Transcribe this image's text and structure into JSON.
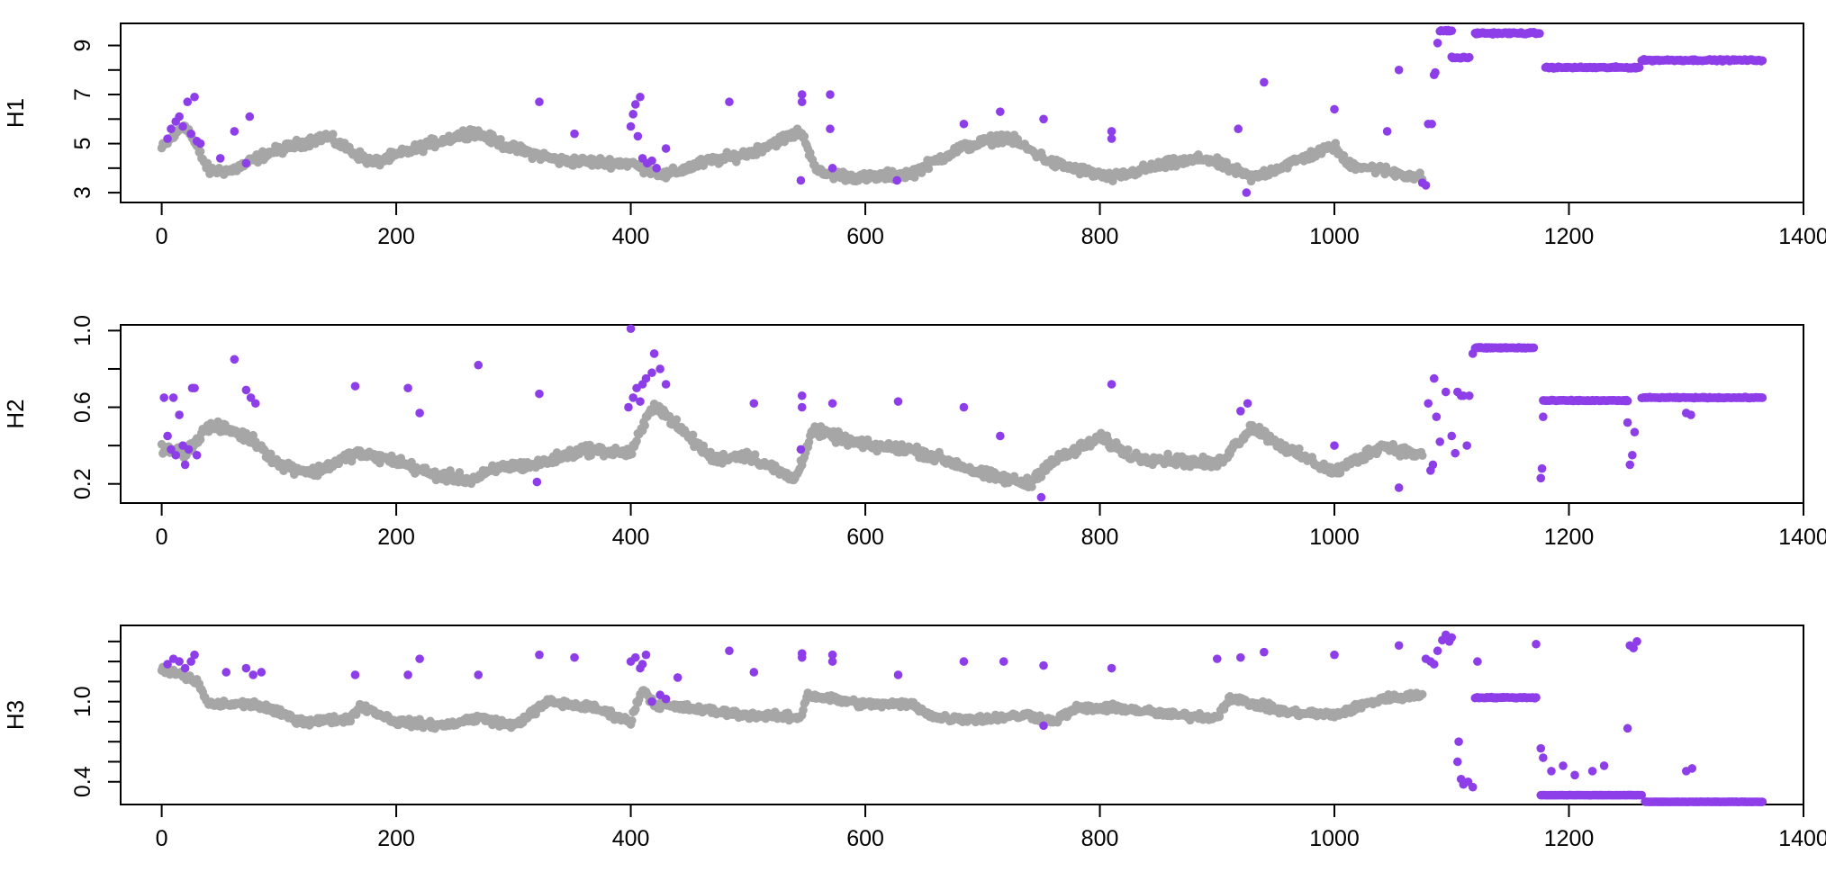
{
  "figure": {
    "title": "",
    "background": "#ffffff"
  },
  "colors": {
    "normal": "#a6a6a6",
    "highlight": "#8e3ee8",
    "axis": "#000000"
  },
  "chart_data": [
    {
      "type": "scatter",
      "name": "H1",
      "ylabel": "H1",
      "xlabel": "",
      "xlim": [
        -35,
        1400
      ],
      "ylim": [
        2.6,
        9.9
      ],
      "xticks": [
        0,
        200,
        400,
        600,
        800,
        1000,
        1200,
        1400
      ],
      "xtick_labels": [
        "0",
        "200",
        "400",
        "600",
        "800",
        "1000",
        "1200",
        "1400"
      ],
      "yticks": [
        3,
        4,
        5,
        6,
        7,
        8,
        9
      ],
      "ytick_labels": [
        "3",
        "5",
        "7",
        "9"
      ],
      "ytick_label_values": [
        3,
        5,
        7,
        9
      ],
      "baseline": [
        [
          0,
          4.8
        ],
        [
          20,
          5.8
        ],
        [
          40,
          3.9
        ],
        [
          60,
          3.9
        ],
        [
          90,
          4.6
        ],
        [
          140,
          5.3
        ],
        [
          180,
          4.2
        ],
        [
          230,
          5.0
        ],
        [
          265,
          5.5
        ],
        [
          300,
          4.8
        ],
        [
          340,
          4.3
        ],
        [
          400,
          4.2
        ],
        [
          430,
          3.7
        ],
        [
          460,
          4.2
        ],
        [
          500,
          4.6
        ],
        [
          545,
          5.5
        ],
        [
          560,
          3.8
        ],
        [
          600,
          3.6
        ],
        [
          640,
          3.8
        ],
        [
          680,
          4.8
        ],
        [
          720,
          5.3
        ],
        [
          760,
          4.2
        ],
        [
          810,
          3.6
        ],
        [
          850,
          4.1
        ],
        [
          890,
          4.4
        ],
        [
          930,
          3.6
        ],
        [
          1000,
          4.9
        ],
        [
          1010,
          4.2
        ],
        [
          1075,
          3.6
        ]
      ],
      "baseline_jitter": 0.28,
      "highlight_segments": [
        {
          "x": [
            1090,
            1100
          ],
          "y": 9.6
        },
        {
          "x": [
            1100,
            1115
          ],
          "y": 8.5
        },
        {
          "x": [
            1120,
            1175
          ],
          "y": 9.5
        },
        {
          "x": [
            1180,
            1260
          ],
          "y": 8.1
        },
        {
          "x": [
            1262,
            1365
          ],
          "y": 8.4
        }
      ],
      "highlight_extra": [
        [
          5,
          5.2
        ],
        [
          8,
          5.6
        ],
        [
          12,
          5.9
        ],
        [
          15,
          6.1
        ],
        [
          18,
          5.7
        ],
        [
          22,
          6.7
        ],
        [
          25,
          5.4
        ],
        [
          28,
          6.9
        ],
        [
          30,
          5.1
        ],
        [
          33,
          5.0
        ],
        [
          50,
          4.4
        ],
        [
          62,
          5.5
        ],
        [
          72,
          4.2
        ],
        [
          75,
          6.1
        ],
        [
          322,
          6.7
        ],
        [
          352,
          5.4
        ],
        [
          400,
          5.7
        ],
        [
          402,
          6.2
        ],
        [
          404,
          6.6
        ],
        [
          406,
          5.3
        ],
        [
          408,
          6.9
        ],
        [
          410,
          4.4
        ],
        [
          414,
          4.2
        ],
        [
          418,
          4.3
        ],
        [
          422,
          4.0
        ],
        [
          430,
          4.8
        ],
        [
          484,
          6.7
        ],
        [
          545,
          3.5
        ],
        [
          546,
          7.0
        ],
        [
          546,
          6.7
        ],
        [
          570,
          7.0
        ],
        [
          570,
          5.6
        ],
        [
          572,
          4.0
        ],
        [
          627,
          3.5
        ],
        [
          684,
          5.8
        ],
        [
          715,
          6.3
        ],
        [
          752,
          6.0
        ],
        [
          810,
          5.5
        ],
        [
          810,
          5.2
        ],
        [
          918,
          5.6
        ],
        [
          925,
          3.0
        ],
        [
          940,
          7.5
        ],
        [
          1000,
          6.4
        ],
        [
          1045,
          5.5
        ],
        [
          1055,
          8.0
        ],
        [
          1075,
          3.4
        ],
        [
          1078,
          3.3
        ],
        [
          1080,
          5.8
        ],
        [
          1083,
          5.8
        ],
        [
          1085,
          7.8
        ],
        [
          1086,
          7.9
        ],
        [
          1088,
          9.1
        ]
      ]
    },
    {
      "type": "scatter",
      "name": "H2",
      "ylabel": "H2",
      "xlabel": "",
      "xlim": [
        -35,
        1400
      ],
      "ylim": [
        0.1,
        1.03
      ],
      "xticks": [
        0,
        200,
        400,
        600,
        800,
        1000,
        1200,
        1400
      ],
      "xtick_labels": [
        "0",
        "200",
        "400",
        "600",
        "800",
        "1000",
        "1200",
        "1400"
      ],
      "yticks": [
        0.2,
        0.4,
        0.6,
        0.8,
        1.0
      ],
      "ytick_labels": [
        "0.2",
        "0.6",
        "1.0"
      ],
      "ytick_label_values": [
        0.2,
        0.6,
        1.0
      ],
      "baseline": [
        [
          0,
          0.38
        ],
        [
          20,
          0.36
        ],
        [
          40,
          0.5
        ],
        [
          60,
          0.48
        ],
        [
          80,
          0.42
        ],
        [
          100,
          0.3
        ],
        [
          130,
          0.26
        ],
        [
          165,
          0.36
        ],
        [
          200,
          0.32
        ],
        [
          230,
          0.25
        ],
        [
          265,
          0.22
        ],
        [
          290,
          0.29
        ],
        [
          320,
          0.3
        ],
        [
          360,
          0.38
        ],
        [
          400,
          0.36
        ],
        [
          420,
          0.62
        ],
        [
          440,
          0.5
        ],
        [
          470,
          0.33
        ],
        [
          500,
          0.35
        ],
        [
          540,
          0.22
        ],
        [
          555,
          0.48
        ],
        [
          600,
          0.4
        ],
        [
          640,
          0.38
        ],
        [
          680,
          0.3
        ],
        [
          700,
          0.25
        ],
        [
          740,
          0.2
        ],
        [
          755,
          0.3
        ],
        [
          800,
          0.44
        ],
        [
          830,
          0.34
        ],
        [
          870,
          0.32
        ],
        [
          900,
          0.3
        ],
        [
          930,
          0.5
        ],
        [
          960,
          0.38
        ],
        [
          1000,
          0.26
        ],
        [
          1040,
          0.4
        ],
        [
          1075,
          0.35
        ]
      ],
      "baseline_jitter": 0.04,
      "highlight_segments": [
        {
          "x": [
            1120,
            1170
          ],
          "y": 0.91
        },
        {
          "x": [
            1178,
            1250
          ],
          "y": 0.635
        },
        {
          "x": [
            1262,
            1365
          ],
          "y": 0.65
        }
      ],
      "highlight_extra": [
        [
          2,
          0.65
        ],
        [
          5,
          0.45
        ],
        [
          8,
          0.38
        ],
        [
          10,
          0.65
        ],
        [
          12,
          0.35
        ],
        [
          15,
          0.56
        ],
        [
          18,
          0.4
        ],
        [
          20,
          0.3
        ],
        [
          23,
          0.38
        ],
        [
          26,
          0.7
        ],
        [
          28,
          0.7
        ],
        [
          30,
          0.35
        ],
        [
          62,
          0.85
        ],
        [
          72,
          0.69
        ],
        [
          76,
          0.65
        ],
        [
          80,
          0.62
        ],
        [
          165,
          0.71
        ],
        [
          210,
          0.7
        ],
        [
          220,
          0.57
        ],
        [
          270,
          0.82
        ],
        [
          320,
          0.21
        ],
        [
          322,
          0.67
        ],
        [
          398,
          0.6
        ],
        [
          400,
          1.01
        ],
        [
          402,
          0.65
        ],
        [
          405,
          0.7
        ],
        [
          408,
          0.63
        ],
        [
          410,
          0.72
        ],
        [
          413,
          0.75
        ],
        [
          418,
          0.78
        ],
        [
          420,
          0.88
        ],
        [
          425,
          0.8
        ],
        [
          430,
          0.72
        ],
        [
          505,
          0.62
        ],
        [
          545,
          0.38
        ],
        [
          546,
          0.66
        ],
        [
          546,
          0.6
        ],
        [
          572,
          0.62
        ],
        [
          628,
          0.63
        ],
        [
          684,
          0.6
        ],
        [
          715,
          0.45
        ],
        [
          750,
          0.13
        ],
        [
          810,
          0.72
        ],
        [
          920,
          0.58
        ],
        [
          926,
          0.62
        ],
        [
          1000,
          0.4
        ],
        [
          1055,
          0.18
        ],
        [
          1080,
          0.62
        ],
        [
          1082,
          0.27
        ],
        [
          1084,
          0.3
        ],
        [
          1085,
          0.75
        ],
        [
          1087,
          0.55
        ],
        [
          1090,
          0.42
        ],
        [
          1095,
          0.68
        ],
        [
          1100,
          0.45
        ],
        [
          1103,
          0.36
        ],
        [
          1105,
          0.68
        ],
        [
          1108,
          0.66
        ],
        [
          1110,
          0.66
        ],
        [
          1113,
          0.4
        ],
        [
          1115,
          0.66
        ],
        [
          1118,
          0.88
        ],
        [
          1176,
          0.23
        ],
        [
          1177,
          0.28
        ],
        [
          1178,
          0.55
        ],
        [
          1250,
          0.52
        ],
        [
          1252,
          0.3
        ],
        [
          1254,
          0.35
        ],
        [
          1256,
          0.47
        ],
        [
          1300,
          0.57
        ],
        [
          1304,
          0.56
        ]
      ]
    },
    {
      "type": "scatter",
      "name": "H3",
      "ylabel": "H3",
      "xlabel": "",
      "xlim": [
        -35,
        1400
      ],
      "ylim": [
        0.23,
        1.57
      ],
      "xticks": [
        0,
        200,
        400,
        600,
        800,
        1000,
        1200,
        1400
      ],
      "xtick_labels": [
        "0",
        "200",
        "400",
        "600",
        "800",
        "1000",
        "1200",
        "1400"
      ],
      "yticks": [
        0.4,
        0.7,
        1.0,
        1.3,
        1.6
      ],
      "ytick_labels": [
        "0.4",
        "1.0"
      ],
      "ytick_label_values": [
        0.4,
        1.0
      ],
      "extra_yticks": [
        0.55,
        0.85,
        1.15,
        1.45
      ],
      "baseline": [
        [
          0,
          1.25
        ],
        [
          30,
          1.15
        ],
        [
          40,
          0.98
        ],
        [
          80,
          0.98
        ],
        [
          120,
          0.85
        ],
        [
          160,
          0.87
        ],
        [
          170,
          0.97
        ],
        [
          200,
          0.85
        ],
        [
          240,
          0.82
        ],
        [
          270,
          0.88
        ],
        [
          300,
          0.82
        ],
        [
          330,
          1.0
        ],
        [
          370,
          0.95
        ],
        [
          400,
          0.85
        ],
        [
          410,
          1.1
        ],
        [
          420,
          0.98
        ],
        [
          460,
          0.94
        ],
        [
          500,
          0.9
        ],
        [
          545,
          0.88
        ],
        [
          550,
          1.05
        ],
        [
          600,
          0.98
        ],
        [
          640,
          0.98
        ],
        [
          660,
          0.88
        ],
        [
          700,
          0.87
        ],
        [
          740,
          0.9
        ],
        [
          760,
          0.85
        ],
        [
          780,
          0.95
        ],
        [
          820,
          0.95
        ],
        [
          860,
          0.9
        ],
        [
          900,
          0.88
        ],
        [
          910,
          1.03
        ],
        [
          960,
          0.92
        ],
        [
          1000,
          0.9
        ],
        [
          1040,
          1.02
        ],
        [
          1075,
          1.05
        ]
      ],
      "baseline_jitter": 0.04,
      "highlight_segments": [
        {
          "x": [
            1120,
            1172
          ],
          "y": 1.03
        },
        {
          "x": [
            1176,
            1262
          ],
          "y": 0.3
        },
        {
          "x": [
            1265,
            1365
          ],
          "y": 0.25
        }
      ],
      "highlight_extra": [
        [
          5,
          1.28
        ],
        [
          10,
          1.32
        ],
        [
          15,
          1.3
        ],
        [
          20,
          1.25
        ],
        [
          25,
          1.3
        ],
        [
          28,
          1.35
        ],
        [
          55,
          1.22
        ],
        [
          72,
          1.25
        ],
        [
          78,
          1.2
        ],
        [
          85,
          1.22
        ],
        [
          165,
          1.2
        ],
        [
          210,
          1.2
        ],
        [
          220,
          1.32
        ],
        [
          270,
          1.2
        ],
        [
          322,
          1.35
        ],
        [
          352,
          1.33
        ],
        [
          400,
          1.3
        ],
        [
          404,
          1.33
        ],
        [
          408,
          1.25
        ],
        [
          410,
          1.28
        ],
        [
          413,
          1.35
        ],
        [
          418,
          1.0
        ],
        [
          425,
          1.05
        ],
        [
          430,
          1.02
        ],
        [
          440,
          1.18
        ],
        [
          484,
          1.38
        ],
        [
          505,
          1.22
        ],
        [
          546,
          1.36
        ],
        [
          546,
          1.33
        ],
        [
          572,
          1.35
        ],
        [
          572,
          1.3
        ],
        [
          628,
          1.2
        ],
        [
          684,
          1.3
        ],
        [
          718,
          1.3
        ],
        [
          752,
          0.82
        ],
        [
          752,
          1.27
        ],
        [
          810,
          1.25
        ],
        [
          900,
          1.32
        ],
        [
          920,
          1.33
        ],
        [
          940,
          1.37
        ],
        [
          1000,
          1.35
        ],
        [
          1055,
          1.42
        ],
        [
          1078,
          1.32
        ],
        [
          1082,
          1.3
        ],
        [
          1085,
          1.28
        ],
        [
          1088,
          1.38
        ],
        [
          1092,
          1.46
        ],
        [
          1095,
          1.5
        ],
        [
          1098,
          1.45
        ],
        [
          1100,
          1.48
        ],
        [
          1105,
          0.55
        ],
        [
          1106,
          0.7
        ],
        [
          1108,
          0.42
        ],
        [
          1110,
          0.38
        ],
        [
          1114,
          0.4
        ],
        [
          1118,
          0.36
        ],
        [
          1122,
          1.3
        ],
        [
          1172,
          1.43
        ],
        [
          1176,
          0.65
        ],
        [
          1178,
          0.58
        ],
        [
          1185,
          0.48
        ],
        [
          1195,
          0.52
        ],
        [
          1205,
          0.45
        ],
        [
          1220,
          0.48
        ],
        [
          1230,
          0.52
        ],
        [
          1250,
          0.8
        ],
        [
          1252,
          1.42
        ],
        [
          1255,
          1.4
        ],
        [
          1258,
          1.45
        ],
        [
          1300,
          0.48
        ],
        [
          1305,
          0.5
        ]
      ]
    }
  ]
}
